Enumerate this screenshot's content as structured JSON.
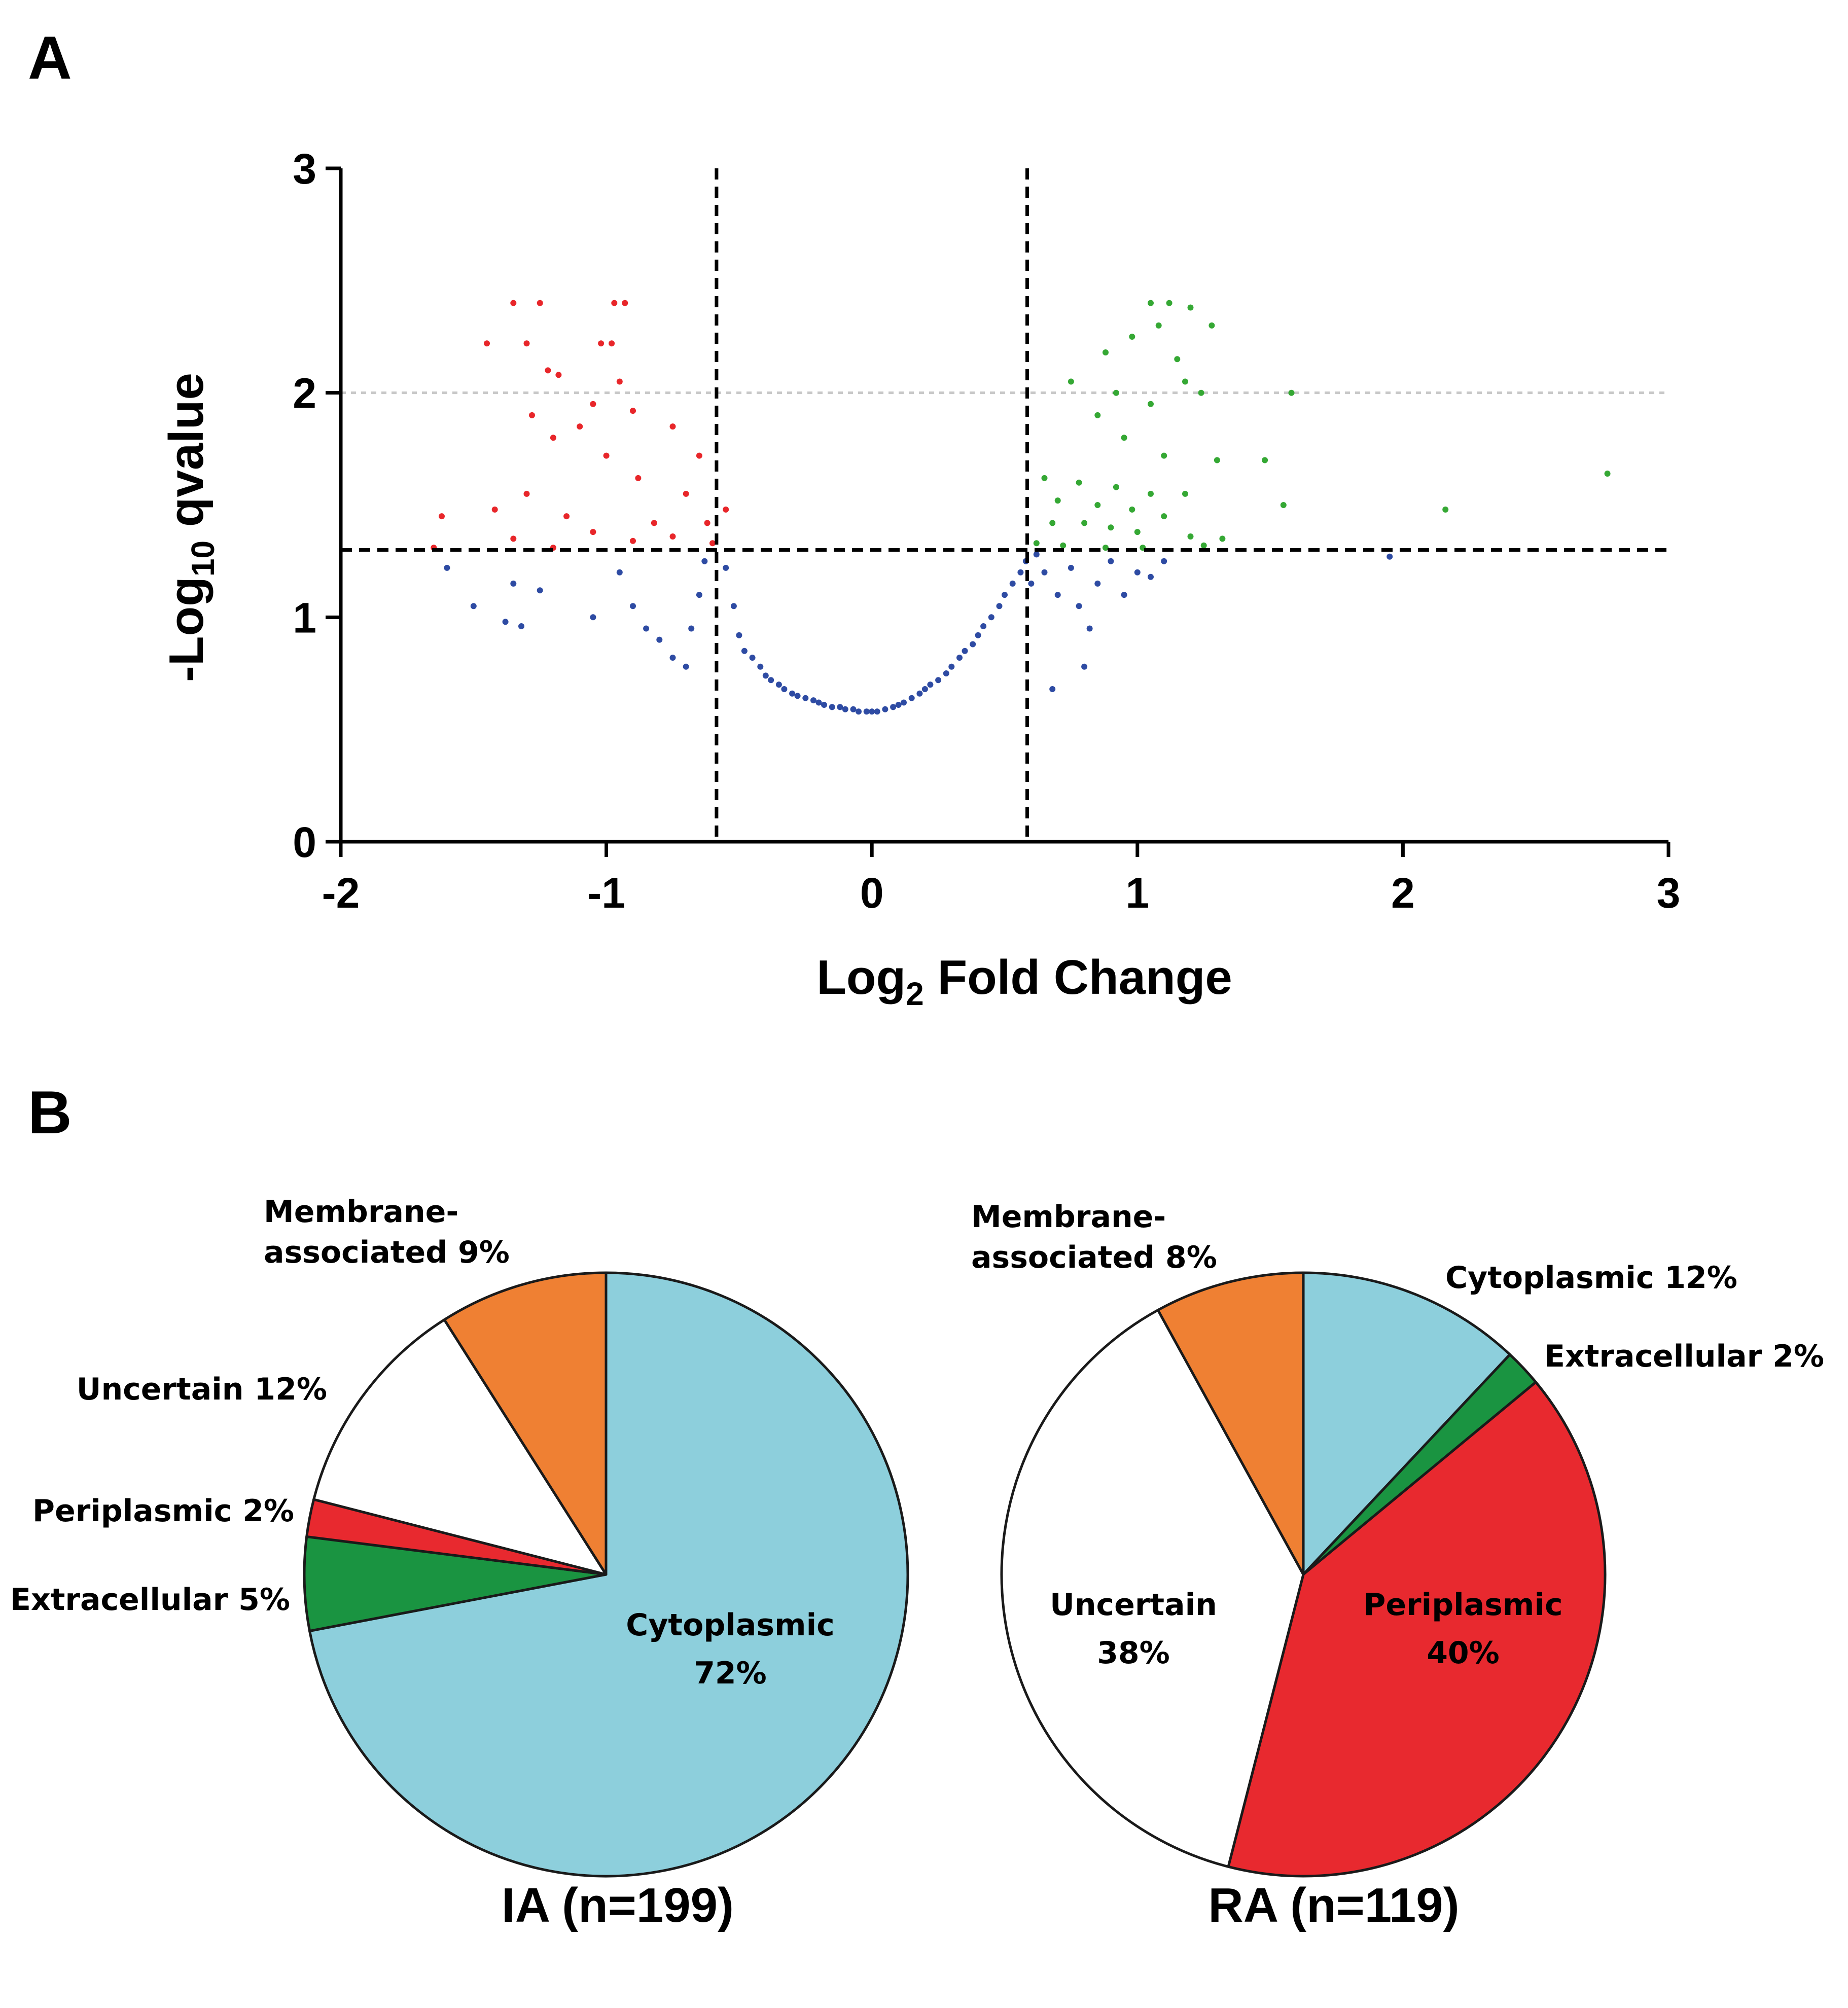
{
  "panels": {
    "a": "A",
    "b": "B"
  },
  "chart_data": [
    {
      "type": "scatter",
      "title": "",
      "xlabel": {
        "main": "Log",
        "sub": "2",
        "rest": " Fold Change"
      },
      "ylabel": {
        "main": "-Log",
        "sub": "10",
        "rest": " qvalue"
      },
      "xlim": [
        -2,
        3
      ],
      "ylim": [
        0,
        3
      ],
      "x_ticks": [
        -2,
        -1,
        0,
        1,
        2,
        3
      ],
      "y_ticks": [
        0,
        1,
        2,
        3
      ],
      "x_tick_labels": [
        "-2",
        "-1",
        "0",
        "1",
        "2",
        "3"
      ],
      "y_tick_labels": [
        "0",
        "1",
        "2",
        "3"
      ],
      "thresholds": {
        "fold_change_low": -0.585,
        "fold_change_high": 0.585,
        "significance": 1.3,
        "reference_line": 2.0
      },
      "colors": {
        "down": "#e8262a",
        "up": "#35a834",
        "ns": "#2e4ba3",
        "threshold_line": "#000000",
        "reference_line": "#c8c8c8"
      },
      "series": [
        {
          "name": "down-regulated",
          "color": "#e8262a",
          "points": [
            [
              -1.35,
              2.4
            ],
            [
              -1.25,
              2.4
            ],
            [
              -0.97,
              2.4
            ],
            [
              -0.93,
              2.4
            ],
            [
              -1.45,
              2.22
            ],
            [
              -1.3,
              2.22
            ],
            [
              -1.02,
              2.22
            ],
            [
              -0.98,
              2.22
            ],
            [
              -1.22,
              2.1
            ],
            [
              -1.18,
              2.08
            ],
            [
              -0.95,
              2.05
            ],
            [
              -1.05,
              1.95
            ],
            [
              -0.9,
              1.92
            ],
            [
              -1.28,
              1.9
            ],
            [
              -1.1,
              1.85
            ],
            [
              -0.75,
              1.85
            ],
            [
              -1.2,
              1.8
            ],
            [
              -1.0,
              1.72
            ],
            [
              -0.65,
              1.72
            ],
            [
              -0.88,
              1.62
            ],
            [
              -1.3,
              1.55
            ],
            [
              -0.7,
              1.55
            ],
            [
              -1.42,
              1.48
            ],
            [
              -0.55,
              1.48
            ],
            [
              -1.62,
              1.45
            ],
            [
              -1.15,
              1.45
            ],
            [
              -0.82,
              1.42
            ],
            [
              -0.62,
              1.42
            ],
            [
              -1.05,
              1.38
            ],
            [
              -0.75,
              1.36
            ],
            [
              -1.35,
              1.35
            ],
            [
              -0.9,
              1.34
            ],
            [
              -0.6,
              1.33
            ],
            [
              -1.65,
              1.31
            ],
            [
              -1.2,
              1.31
            ]
          ]
        },
        {
          "name": "up-regulated",
          "color": "#35a834",
          "points": [
            [
              1.05,
              2.4
            ],
            [
              1.12,
              2.4
            ],
            [
              1.2,
              2.38
            ],
            [
              0.98,
              2.25
            ],
            [
              1.08,
              2.3
            ],
            [
              1.28,
              2.3
            ],
            [
              0.88,
              2.18
            ],
            [
              1.15,
              2.15
            ],
            [
              1.18,
              2.05
            ],
            [
              0.75,
              2.05
            ],
            [
              0.92,
              2.0
            ],
            [
              1.05,
              1.95
            ],
            [
              1.24,
              2.0
            ],
            [
              1.58,
              2.0
            ],
            [
              0.85,
              1.9
            ],
            [
              0.95,
              1.8
            ],
            [
              1.1,
              1.72
            ],
            [
              1.3,
              1.7
            ],
            [
              1.48,
              1.7
            ],
            [
              2.77,
              1.64
            ],
            [
              0.65,
              1.62
            ],
            [
              0.78,
              1.6
            ],
            [
              0.92,
              1.58
            ],
            [
              1.05,
              1.55
            ],
            [
              1.18,
              1.55
            ],
            [
              0.7,
              1.52
            ],
            [
              0.85,
              1.5
            ],
            [
              0.98,
              1.48
            ],
            [
              1.1,
              1.45
            ],
            [
              1.55,
              1.5
            ],
            [
              2.16,
              1.48
            ],
            [
              0.68,
              1.42
            ],
            [
              0.8,
              1.42
            ],
            [
              0.9,
              1.4
            ],
            [
              1.0,
              1.38
            ],
            [
              1.2,
              1.36
            ],
            [
              1.32,
              1.35
            ],
            [
              0.62,
              1.33
            ],
            [
              0.72,
              1.32
            ],
            [
              0.88,
              1.31
            ],
            [
              1.02,
              1.31
            ],
            [
              1.25,
              1.32
            ]
          ]
        },
        {
          "name": "not-significant",
          "color": "#2e4ba3",
          "points": [
            [
              -1.6,
              1.22
            ],
            [
              -1.35,
              1.15
            ],
            [
              -1.25,
              1.12
            ],
            [
              -1.5,
              1.05
            ],
            [
              -1.38,
              0.98
            ],
            [
              -1.05,
              1.0
            ],
            [
              -1.32,
              0.96
            ],
            [
              -0.95,
              1.2
            ],
            [
              -0.9,
              1.05
            ],
            [
              -0.85,
              0.95
            ],
            [
              -0.8,
              0.9
            ],
            [
              -0.75,
              0.82
            ],
            [
              -0.7,
              0.78
            ],
            [
              -0.68,
              0.95
            ],
            [
              -0.65,
              1.1
            ],
            [
              -0.63,
              1.25
            ],
            [
              -0.55,
              1.22
            ],
            [
              -0.52,
              1.05
            ],
            [
              -0.5,
              0.92
            ],
            [
              -0.48,
              0.85
            ],
            [
              -0.45,
              0.82
            ],
            [
              -0.42,
              0.78
            ],
            [
              -0.4,
              0.74
            ],
            [
              -0.38,
              0.72
            ],
            [
              -0.35,
              0.7
            ],
            [
              -0.33,
              0.68
            ],
            [
              -0.3,
              0.66
            ],
            [
              -0.28,
              0.65
            ],
            [
              -0.25,
              0.64
            ],
            [
              -0.22,
              0.63
            ],
            [
              -0.2,
              0.62
            ],
            [
              -0.18,
              0.61
            ],
            [
              -0.15,
              0.6
            ],
            [
              -0.12,
              0.6
            ],
            [
              -0.1,
              0.59
            ],
            [
              -0.07,
              0.59
            ],
            [
              -0.05,
              0.58
            ],
            [
              -0.02,
              0.58
            ],
            [
              0.0,
              0.58
            ],
            [
              0.02,
              0.58
            ],
            [
              0.05,
              0.59
            ],
            [
              0.08,
              0.6
            ],
            [
              0.1,
              0.61
            ],
            [
              0.12,
              0.62
            ],
            [
              0.15,
              0.64
            ],
            [
              0.18,
              0.66
            ],
            [
              0.2,
              0.68
            ],
            [
              0.22,
              0.7
            ],
            [
              0.25,
              0.72
            ],
            [
              0.28,
              0.75
            ],
            [
              0.3,
              0.78
            ],
            [
              0.33,
              0.82
            ],
            [
              0.35,
              0.85
            ],
            [
              0.38,
              0.88
            ],
            [
              0.4,
              0.92
            ],
            [
              0.42,
              0.96
            ],
            [
              0.45,
              1.0
            ],
            [
              0.48,
              1.05
            ],
            [
              0.5,
              1.1
            ],
            [
              0.53,
              1.15
            ],
            [
              0.56,
              1.2
            ],
            [
              0.58,
              1.25
            ],
            [
              0.62,
              1.28
            ],
            [
              0.6,
              1.15
            ],
            [
              0.65,
              1.2
            ],
            [
              0.7,
              1.1
            ],
            [
              0.75,
              1.22
            ],
            [
              0.78,
              1.05
            ],
            [
              0.82,
              0.95
            ],
            [
              0.85,
              1.15
            ],
            [
              0.9,
              1.25
            ],
            [
              0.95,
              1.1
            ],
            [
              1.0,
              1.2
            ],
            [
              1.05,
              1.18
            ],
            [
              1.1,
              1.25
            ],
            [
              0.8,
              0.78
            ],
            [
              0.68,
              0.68
            ],
            [
              1.95,
              1.27
            ]
          ]
        }
      ]
    },
    {
      "type": "pie",
      "title": "IA (n=199)",
      "start_angle_deg": 0,
      "direction": "clockwise",
      "slices": [
        {
          "name": "Cytoplasmic",
          "value": 72,
          "color": "#8dcfdc",
          "label_lines": [
            "Cytoplasmic",
            "72%"
          ]
        },
        {
          "name": "Extracellular",
          "value": 5,
          "color": "#1a9441",
          "label_lines": [
            "Extracellular 5%"
          ]
        },
        {
          "name": "Periplasmic",
          "value": 2,
          "color": "#e8292f",
          "label_lines": [
            "Periplasmic 2%"
          ]
        },
        {
          "name": "Uncertain",
          "value": 12,
          "color": "#ffffff",
          "label_lines": [
            "Uncertain 12%"
          ]
        },
        {
          "name": "Membrane-associated",
          "value": 9,
          "color": "#ef8033",
          "label_lines": [
            "Membrane-",
            "associated 9%"
          ]
        }
      ]
    },
    {
      "type": "pie",
      "title": "RA (n=119)",
      "start_angle_deg": 0,
      "direction": "clockwise",
      "slices": [
        {
          "name": "Cytoplasmic",
          "value": 12,
          "color": "#8dcfdc",
          "label_lines": [
            "Cytoplasmic 12%"
          ]
        },
        {
          "name": "Extracellular",
          "value": 2,
          "color": "#1a9441",
          "label_lines": [
            "Extracellular 2%"
          ]
        },
        {
          "name": "Periplasmic",
          "value": 40,
          "color": "#e8292f",
          "label_lines": [
            "Periplasmic",
            "40%"
          ]
        },
        {
          "name": "Uncertain",
          "value": 38,
          "color": "#ffffff",
          "label_lines": [
            "Uncertain",
            "38%"
          ]
        },
        {
          "name": "Membrane-associated",
          "value": 8,
          "color": "#ef8033",
          "label_lines": [
            "Membrane-",
            "associated 8%"
          ]
        }
      ]
    }
  ]
}
